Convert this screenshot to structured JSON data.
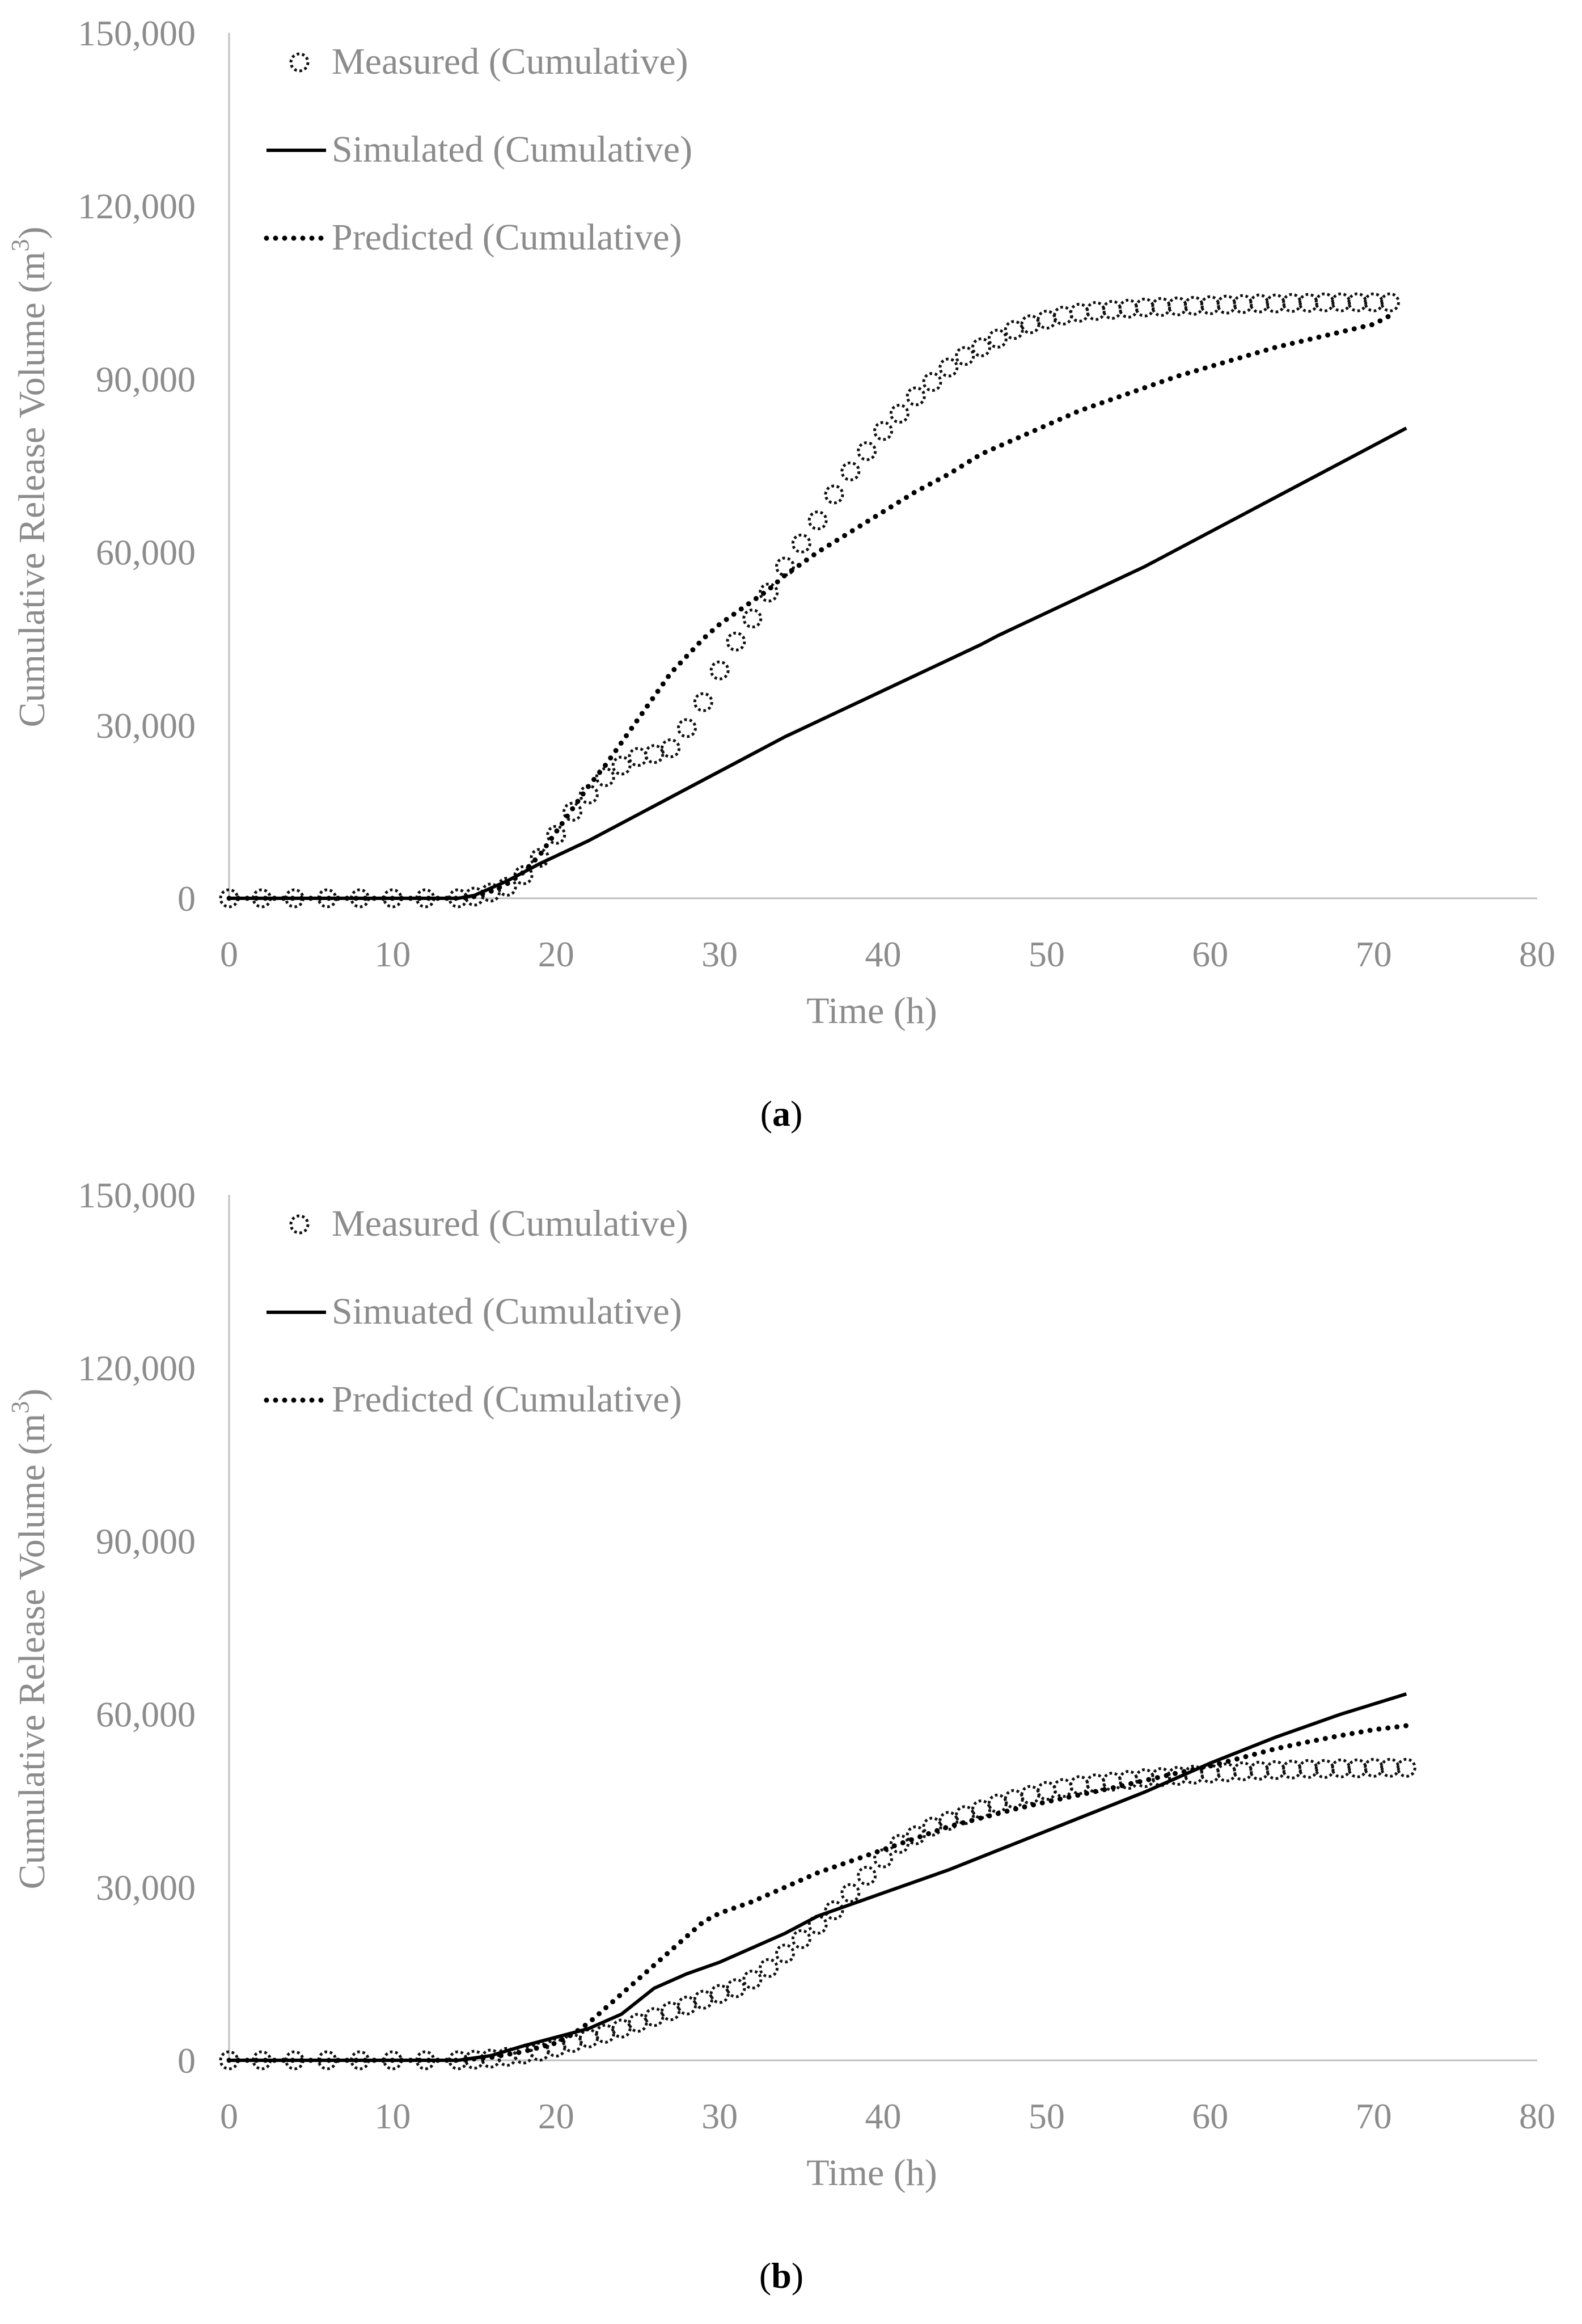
{
  "chart_data": [
    {
      "panel": "a",
      "caption_letter": "a",
      "type": "line",
      "xlabel": "Time (h)",
      "ylabel": "Cumulative Release Volume (m",
      "ylabel_sup": "3",
      "ylabel_close": ")",
      "xlim": [
        0,
        80
      ],
      "ylim": [
        0,
        150000
      ],
      "xticks": [
        0,
        10,
        20,
        30,
        40,
        50,
        60,
        70,
        80
      ],
      "yticks": [
        0,
        30000,
        60000,
        90000,
        120000,
        150000
      ],
      "ytick_labels": [
        "0",
        "30,000",
        "60,000",
        "90,000",
        "120,000",
        "150,000"
      ],
      "legend_position": "top-left",
      "series": [
        {
          "name": "Measured (Cumulative)",
          "style": "circles",
          "x": [
            0,
            2,
            4,
            6,
            8,
            10,
            12,
            14,
            15,
            16,
            17,
            18,
            19,
            20,
            21,
            22,
            23,
            24,
            25,
            26,
            27,
            28,
            29,
            30,
            31,
            32,
            33,
            34,
            35,
            36,
            37,
            38,
            39,
            40,
            41,
            42,
            43,
            44,
            45,
            46,
            47,
            48,
            49,
            50,
            51,
            52,
            53,
            54,
            55,
            56,
            57,
            58,
            59,
            60,
            61,
            62,
            63,
            64,
            65,
            66,
            67,
            68,
            69,
            70,
            71
          ],
          "y": [
            0,
            0,
            0,
            0,
            0,
            0,
            0,
            0,
            300,
            1000,
            2000,
            4000,
            7000,
            11000,
            15000,
            18000,
            21000,
            23000,
            24500,
            25000,
            26000,
            29500,
            34000,
            39500,
            44500,
            48500,
            53000,
            57500,
            61500,
            65500,
            70000,
            74000,
            77500,
            81000,
            84000,
            87000,
            89500,
            92000,
            94000,
            95500,
            97000,
            98500,
            99500,
            100300,
            101000,
            101500,
            101800,
            102000,
            102200,
            102400,
            102500,
            102600,
            102700,
            102800,
            102900,
            103000,
            103100,
            103100,
            103200,
            103200,
            103300,
            103300,
            103300,
            103300,
            103300
          ]
        },
        {
          "name": "Simulated (Cumulative)",
          "style": "solid",
          "x": [
            0,
            14,
            15,
            17,
            19,
            22,
            25,
            28,
            31,
            34,
            37,
            40,
            43,
            46,
            47,
            50,
            53,
            56,
            59,
            62,
            65,
            68,
            72
          ],
          "y": [
            0,
            0,
            500,
            3000,
            6000,
            10000,
            14500,
            19000,
            23500,
            28000,
            32000,
            36000,
            40000,
            44000,
            45500,
            49500,
            53500,
            57500,
            62000,
            66500,
            71000,
            75500,
            81500
          ]
        },
        {
          "name": "Predicted (Cumulative)",
          "style": "dotted",
          "x": [
            0,
            14,
            15,
            16,
            17,
            18,
            19,
            20,
            21,
            22,
            23,
            24,
            25,
            26,
            27,
            28,
            29,
            30,
            31,
            32,
            33,
            34,
            35,
            36,
            38,
            40,
            42,
            44,
            46,
            48,
            50,
            52,
            55,
            58,
            61,
            64,
            67,
            70,
            71
          ],
          "y": [
            0,
            0,
            300,
            1200,
            2500,
            4500,
            7500,
            11500,
            15500,
            19500,
            23000,
            27000,
            31000,
            35000,
            39000,
            42000,
            45000,
            47500,
            49500,
            51500,
            53500,
            56000,
            58000,
            60000,
            63500,
            67000,
            70500,
            73500,
            77000,
            79500,
            82000,
            84500,
            87500,
            90500,
            93000,
            95500,
            97500,
            99500,
            101000
          ]
        }
      ]
    },
    {
      "panel": "b",
      "caption_letter": "b",
      "type": "line",
      "xlabel": "Time (h)",
      "ylabel": "Cumulative Release Volume (m",
      "ylabel_sup": "3",
      "ylabel_close": ")",
      "xlim": [
        0,
        80
      ],
      "ylim": [
        0,
        150000
      ],
      "xticks": [
        0,
        10,
        20,
        30,
        40,
        50,
        60,
        70,
        80
      ],
      "yticks": [
        0,
        30000,
        60000,
        90000,
        120000,
        150000
      ],
      "ytick_labels": [
        "0",
        "30,000",
        "60,000",
        "90,000",
        "120,000",
        "150,000"
      ],
      "legend_position": "top-left",
      "series": [
        {
          "name": "Measured (Cumulative)",
          "style": "circles",
          "x": [
            0,
            2,
            4,
            6,
            8,
            10,
            12,
            14,
            15,
            16,
            17,
            18,
            19,
            20,
            21,
            22,
            23,
            24,
            25,
            26,
            27,
            28,
            29,
            30,
            31,
            32,
            33,
            34,
            35,
            36,
            37,
            38,
            39,
            40,
            41,
            42,
            43,
            44,
            45,
            46,
            47,
            48,
            49,
            50,
            51,
            52,
            53,
            54,
            55,
            56,
            57,
            58,
            59,
            60,
            61,
            62,
            63,
            64,
            65,
            66,
            67,
            68,
            69,
            70,
            71,
            72
          ],
          "y": [
            0,
            0,
            0,
            0,
            0,
            0,
            0,
            0,
            100,
            300,
            600,
            1000,
            1500,
            2200,
            3000,
            3800,
            4600,
            5500,
            6500,
            7500,
            8500,
            9500,
            10500,
            11500,
            12500,
            14000,
            16000,
            18500,
            21000,
            23500,
            26000,
            29000,
            32000,
            35000,
            37500,
            39000,
            40500,
            41500,
            42500,
            43500,
            44500,
            45300,
            46000,
            46700,
            47200,
            47700,
            48000,
            48300,
            48600,
            48900,
            49100,
            49300,
            49500,
            49700,
            49900,
            50100,
            50200,
            50300,
            50400,
            50500,
            50500,
            50600,
            50600,
            50700,
            50700,
            50700
          ]
        },
        {
          "name": "Simuated (Cumulative)",
          "style": "solid",
          "x": [
            0,
            14,
            16,
            18,
            20,
            22,
            24,
            26,
            28,
            30,
            32,
            34,
            36,
            40,
            44,
            48,
            52,
            56,
            60,
            64,
            68,
            72
          ],
          "y": [
            0,
            0,
            800,
            2500,
            4000,
            5500,
            8000,
            12500,
            15000,
            17000,
            19500,
            22000,
            25000,
            29000,
            33000,
            37500,
            42000,
            46500,
            51500,
            56000,
            60000,
            63500
          ]
        },
        {
          "name": "Predicted (Cumulative)",
          "style": "dotted",
          "x": [
            0,
            14,
            16,
            18,
            20,
            21,
            22,
            23,
            24,
            25,
            26,
            27,
            28,
            29,
            30,
            32,
            34,
            36,
            38,
            40,
            42,
            44,
            46,
            48,
            50,
            52,
            54,
            56,
            58,
            60,
            62,
            64,
            66,
            68,
            70,
            72
          ],
          "y": [
            0,
            0,
            500,
            1500,
            3000,
            4500,
            6500,
            9000,
            11500,
            14000,
            16500,
            19000,
            21500,
            24000,
            25500,
            27500,
            30000,
            32500,
            34500,
            36500,
            38500,
            40500,
            42000,
            43500,
            44800,
            46000,
            47200,
            48500,
            49800,
            51000,
            52500,
            54000,
            55200,
            56300,
            57300,
            58000
          ]
        }
      ]
    }
  ]
}
